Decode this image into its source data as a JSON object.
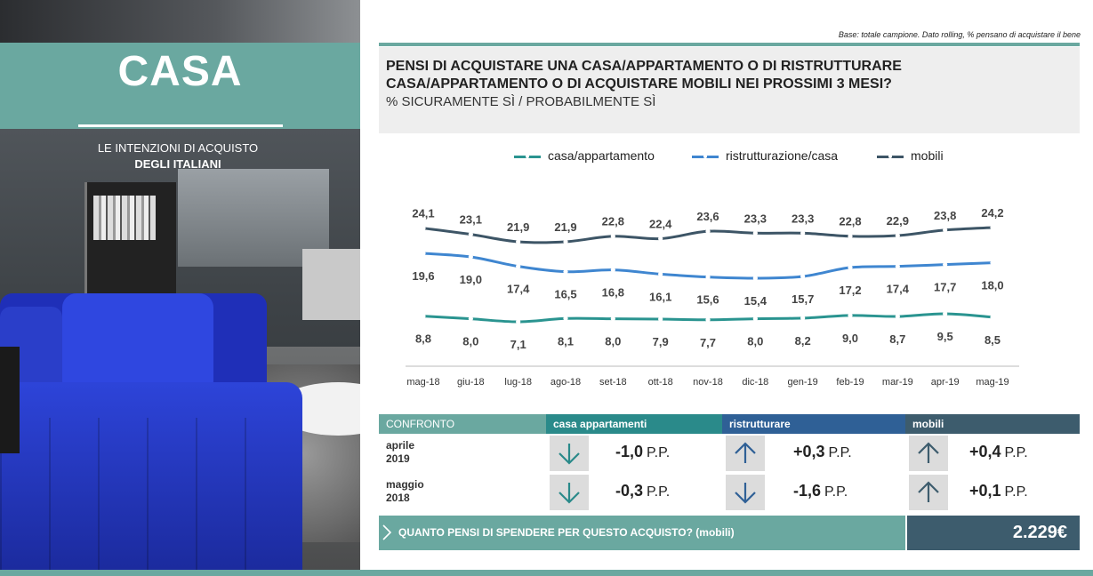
{
  "left_panel": {
    "title": "CASA",
    "subtitle_line1": "LE INTENZIONI DI ACQUISTO",
    "subtitle_line2": "DEGLI ITALIANI"
  },
  "base_note": "Base: totale campione.  Dato rolling, % pensano di acquistare il bene",
  "question": {
    "line1": "PENSI DI ACQUISTARE UNA CASA/APPARTAMENTO O DI RISTRUTTURARE",
    "line2": "CASA/APPARTAMENTO O DI ACQUISTARE MOBILI NEI PROSSIMI 3 MESI?",
    "line3": "% SICURAMENTE SÌ / PROBABILMENTE SÌ"
  },
  "chart_data": {
    "type": "line",
    "categories": [
      "mag-18",
      "giu-18",
      "lug-18",
      "ago-18",
      "set-18",
      "ott-18",
      "nov-18",
      "dic-18",
      "gen-19",
      "feb-19",
      "mar-19",
      "apr-19",
      "mag-19"
    ],
    "series": [
      {
        "name": "casa/appartamento",
        "color": "#2a9490",
        "values": [
          8.8,
          8.0,
          7.1,
          8.1,
          8.0,
          7.9,
          7.7,
          8.0,
          8.2,
          9.0,
          8.7,
          9.5,
          8.5
        ],
        "labels": [
          "8,8",
          "8,0",
          "7,1",
          "8,1",
          "8,0",
          "7,9",
          "7,7",
          "8,0",
          "8,2",
          "9,0",
          "8,7",
          "9,5",
          "8,5"
        ]
      },
      {
        "name": "ristrutturazione/casa",
        "color": "#3f86d0",
        "values": [
          19.6,
          19.0,
          17.4,
          16.5,
          16.8,
          16.1,
          15.6,
          15.4,
          15.7,
          17.2,
          17.4,
          17.7,
          18.0
        ],
        "labels": [
          "19,6",
          "19,0",
          "17,4",
          "16,5",
          "16,8",
          "16,1",
          "15,6",
          "15,4",
          "15,7",
          "17,2",
          "17,4",
          "17,7",
          "18,0"
        ]
      },
      {
        "name": "mobili",
        "color": "#3d5566",
        "values": [
          24.1,
          23.1,
          21.9,
          21.9,
          22.8,
          22.4,
          23.6,
          23.3,
          23.3,
          22.8,
          22.9,
          23.8,
          24.2
        ],
        "labels": [
          "24,1",
          "23,1",
          "21,9",
          "21,9",
          "22,8",
          "22,4",
          "23,6",
          "23,3",
          "23,3",
          "22,8",
          "22,9",
          "23,8",
          "24,2"
        ]
      }
    ],
    "legend_position": "top",
    "grid": false
  },
  "comparison": {
    "header_label": "CONFRONTO",
    "columns": [
      "casa appartamenti",
      "ristrutturare",
      "mobili"
    ],
    "rows": [
      {
        "label_line1": "aprile",
        "label_line2": "2019",
        "cells": [
          {
            "direction": "down",
            "value": "-1,0",
            "unit": "P.P."
          },
          {
            "direction": "up",
            "value": "+0,3",
            "unit": "P.P."
          },
          {
            "direction": "up",
            "value": "+0,4",
            "unit": "P.P."
          }
        ]
      },
      {
        "label_line1": "maggio",
        "label_line2": "2018",
        "cells": [
          {
            "direction": "down",
            "value": "-0,3",
            "unit": "P.P."
          },
          {
            "direction": "down",
            "value": "-1,6",
            "unit": "P.P."
          },
          {
            "direction": "up",
            "value": "+0,1",
            "unit": "P.P."
          }
        ]
      }
    ]
  },
  "spend": {
    "question": "QUANTO PENSI DI SPENDERE PER QUESTO ACQUISTO? (mobili)",
    "value": "2.229€"
  },
  "colors": {
    "accent": "#6aa8a0",
    "casa": "#2a8a8a",
    "ristrutturare": "#2f6096",
    "mobili": "#3d5c6d"
  }
}
